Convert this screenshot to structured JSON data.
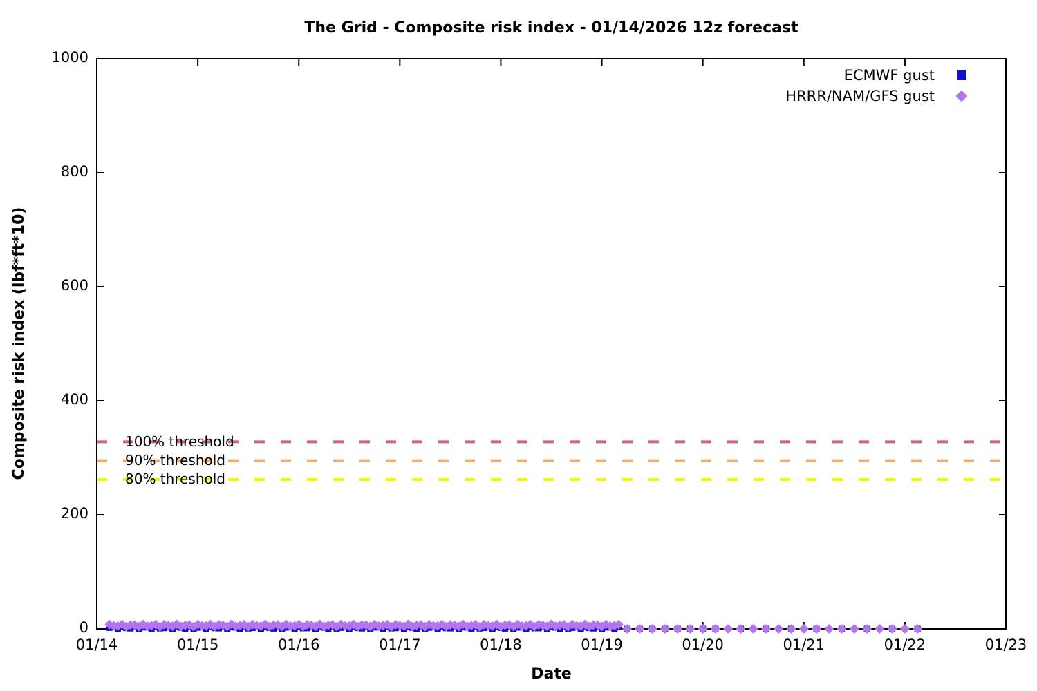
{
  "chart_data": {
    "type": "scatter",
    "title": "The Grid - Composite risk index - 01/14/2026 12z forecast",
    "xlabel": "Date",
    "ylabel": "Composite risk index (lbf*ft*10)",
    "x_tick_labels": [
      "01/14",
      "01/15",
      "01/16",
      "01/17",
      "01/18",
      "01/19",
      "01/20",
      "01/21",
      "01/22",
      "01/23"
    ],
    "y_ticks": [
      0,
      200,
      400,
      600,
      800,
      1000
    ],
    "ylim": [
      0,
      1000
    ],
    "x_range_days": [
      0,
      9
    ],
    "grid": false,
    "legend_position": "top-right",
    "thresholds": [
      {
        "label": "100% threshold",
        "value": 328,
        "color": "#d4617c"
      },
      {
        "label": "90% threshold",
        "value": 295,
        "color": "#f4a96f"
      },
      {
        "label": "80% threshold",
        "value": 262,
        "color": "#f6f600"
      }
    ],
    "series": [
      {
        "name": "ECMWF gust",
        "marker": "square",
        "color": "#0f0fd0",
        "summary": "Values remain near 0 for the whole forecast period 01/14 03z through 01/22 03z",
        "segments": [
          {
            "start_day": 0.125,
            "end_day": 5.1667,
            "step_days": 0.0416667,
            "value": 2,
            "value_jitter": 2
          },
          {
            "start_day": 5.25,
            "end_day": 6.125,
            "step_days": 0.125,
            "value": 0,
            "value_jitter": 0
          },
          {
            "start_day": 6.375,
            "end_day": 8.125,
            "step_days": 0.25,
            "value": 0,
            "value_jitter": 0
          }
        ]
      },
      {
        "name": "HRRR/NAM/GFS gust",
        "marker": "diamond",
        "color": "#b374ee",
        "summary": "Values remain near 0 for the whole forecast period 01/14 03z through 01/22 03z",
        "segments": [
          {
            "start_day": 0.125,
            "end_day": 5.1667,
            "step_days": 0.0416667,
            "value": 6,
            "value_jitter": 2
          },
          {
            "start_day": 5.25,
            "end_day": 6.125,
            "step_days": 0.125,
            "value": 0,
            "value_jitter": 0
          },
          {
            "start_day": 6.25,
            "end_day": 8.125,
            "step_days": 0.125,
            "value": 0,
            "value_jitter": 0
          }
        ]
      }
    ]
  }
}
